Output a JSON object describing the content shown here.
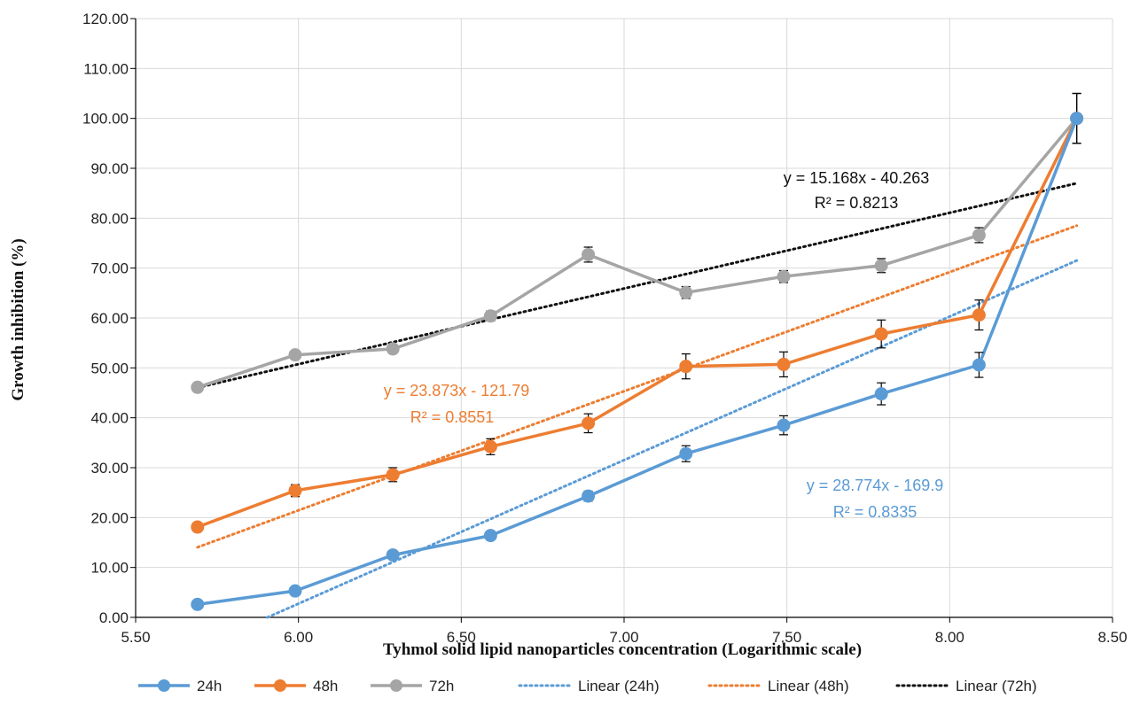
{
  "chart_data": {
    "type": "line",
    "xlabel": "Tyhmol solid lipid nanoparticles concentration (Logarithmic scale)",
    "ylabel": "Growth inhibition (%)",
    "xlim": [
      5.5,
      8.5
    ],
    "ylim": [
      0,
      120
    ],
    "xticks": [
      "5.50",
      "6.00",
      "6.50",
      "7.00",
      "7.50",
      "8.00",
      "8.50"
    ],
    "yticks": [
      "0.00",
      "10.00",
      "20.00",
      "30.00",
      "40.00",
      "50.00",
      "60.00",
      "70.00",
      "80.00",
      "90.00",
      "100.00",
      "110.00",
      "120.00"
    ],
    "grid": true,
    "legend_position": "bottom",
    "x": [
      5.69,
      5.99,
      6.29,
      6.59,
      6.89,
      7.19,
      7.49,
      7.79,
      8.09,
      8.39
    ],
    "series": [
      {
        "name": "24h",
        "color": "#5b9bd5",
        "values": [
          2.6,
          5.3,
          12.5,
          16.4,
          24.3,
          32.8,
          38.5,
          44.8,
          50.6,
          100.0
        ],
        "errors": [
          0.3,
          0.4,
          0.4,
          0.4,
          1.0,
          1.6,
          1.9,
          2.2,
          2.5,
          5.0
        ]
      },
      {
        "name": "48h",
        "color": "#ed7d31",
        "values": [
          18.1,
          25.4,
          28.6,
          34.2,
          38.9,
          50.3,
          50.7,
          56.8,
          60.6,
          100.0
        ],
        "errors": [
          0.5,
          1.2,
          1.4,
          1.6,
          1.9,
          2.5,
          2.5,
          2.8,
          3.0,
          5.0
        ]
      },
      {
        "name": "72h",
        "color": "#a5a5a5",
        "values": [
          46.1,
          52.6,
          53.8,
          60.4,
          72.7,
          65.1,
          68.3,
          70.5,
          76.6,
          100.0
        ],
        "errors": [
          0.5,
          0.8,
          0.8,
          1.0,
          1.5,
          1.2,
          1.2,
          1.4,
          1.5,
          5.0
        ]
      }
    ],
    "trendlines": [
      {
        "name": "Linear (24h)",
        "color": "#5b9bd5",
        "slope": 28.774,
        "intercept": -169.9,
        "equation": "y = 28.774x - 169.9",
        "r2": "R² = 0.8335"
      },
      {
        "name": "Linear (48h)",
        "color": "#ed7d31",
        "slope": 23.873,
        "intercept": -121.79,
        "equation": "y = 23.873x - 121.79",
        "r2": "R² = 0.8551"
      },
      {
        "name": "Linear (72h)",
        "color": "#111111",
        "slope": 15.168,
        "intercept": -40.263,
        "equation": "y = 15.168x - 40.263",
        "r2": "R² = 0.8213"
      }
    ]
  }
}
